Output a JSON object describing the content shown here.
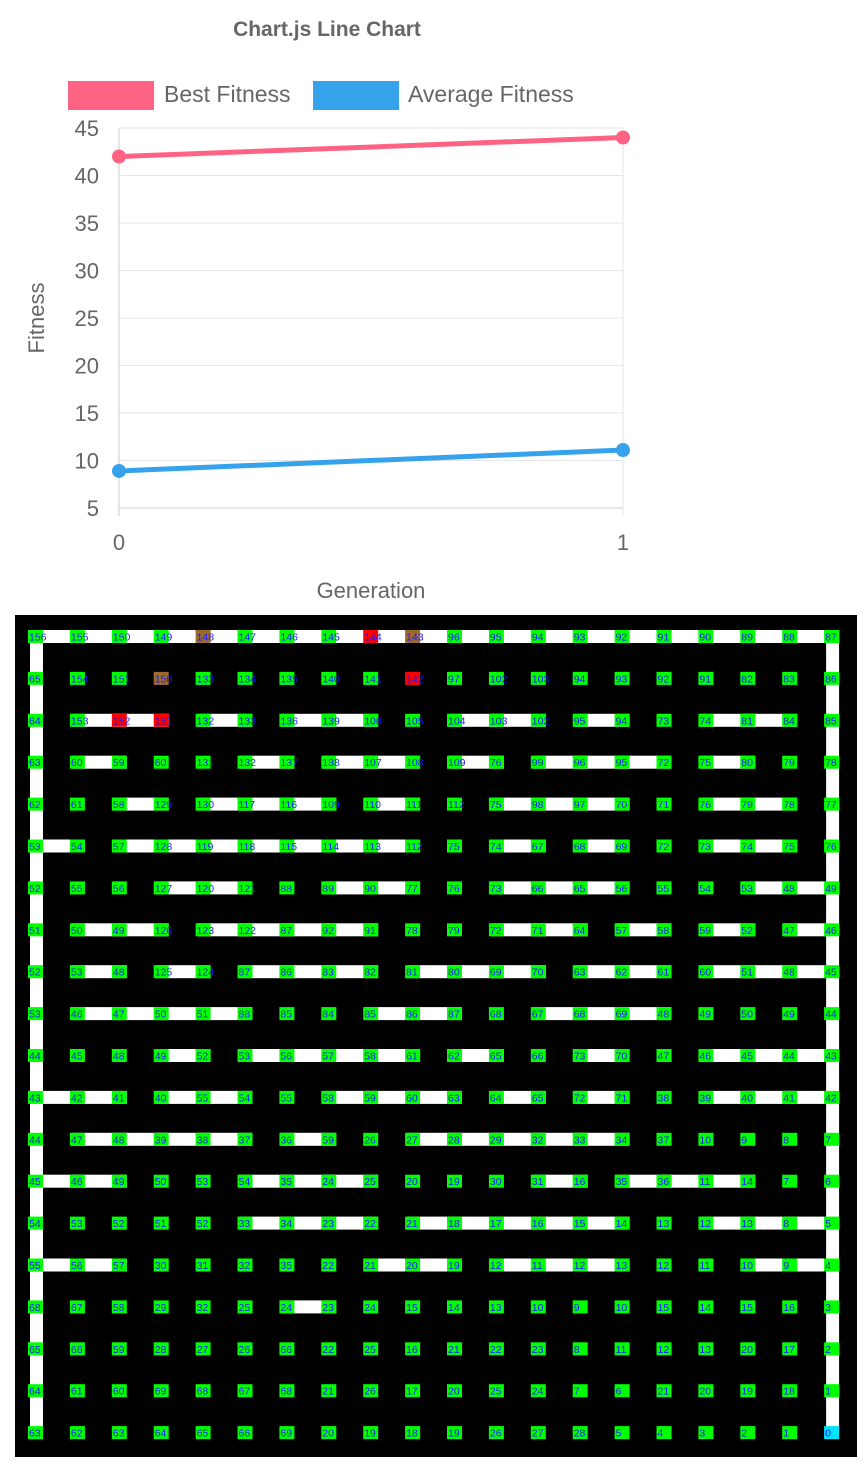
{
  "colors": {
    "best": "#ff6384",
    "average": "#36a2eb",
    "grid": "#e6e6e6",
    "text": "#666666",
    "wall": "#000000",
    "path": "#ffffff",
    "label_green": "#00ff00",
    "label_brown": "#9c6a2a",
    "label_red": "#ff0000",
    "label_cyan": "#00e5ff",
    "label_text": "#1a1aff"
  },
  "chart_data": {
    "type": "line",
    "title": "Chart.js Line Chart",
    "xlabel": "Generation",
    "ylabel": "Fitness",
    "x": [
      0,
      1
    ],
    "ylim": [
      5,
      45
    ],
    "yticks": [
      5,
      10,
      15,
      20,
      25,
      30,
      35,
      40,
      45
    ],
    "grid": true,
    "legend_position": "top",
    "series": [
      {
        "name": "Best Fitness",
        "color": "#ff6384",
        "values": [
          42,
          44
        ]
      },
      {
        "name": "Average Fitness",
        "color": "#36a2eb",
        "values": [
          8.9,
          11.1
        ]
      }
    ]
  },
  "maze": {
    "rows": 20,
    "cols": 20,
    "labels": [
      [
        "156",
        "155",
        "150",
        "149",
        "148",
        "147",
        "146",
        "145",
        "144",
        "143",
        "96",
        "95",
        "94",
        "93",
        "92",
        "91",
        "90",
        "89",
        "88",
        "87"
      ],
      [
        "65",
        "154",
        "151",
        "150",
        "133",
        "134",
        "135",
        "140",
        "141",
        "142",
        "97",
        "102",
        "103",
        "94",
        "93",
        "92",
        "91",
        "82",
        "83",
        "86"
      ],
      [
        "64",
        "153",
        "152",
        "151",
        "132",
        "133",
        "136",
        "139",
        "106",
        "105",
        "104",
        "103",
        "102",
        "95",
        "94",
        "73",
        "74",
        "81",
        "84",
        "85"
      ],
      [
        "63",
        "60",
        "59",
        "60",
        "131",
        "132",
        "137",
        "138",
        "107",
        "108",
        "109",
        "76",
        "99",
        "96",
        "95",
        "72",
        "75",
        "80",
        "79",
        "78"
      ],
      [
        "62",
        "61",
        "58",
        "129",
        "130",
        "117",
        "116",
        "109",
        "110",
        "111",
        "112",
        "75",
        "98",
        "97",
        "70",
        "71",
        "76",
        "79",
        "78",
        "77"
      ],
      [
        "53",
        "54",
        "57",
        "128",
        "119",
        "118",
        "115",
        "114",
        "113",
        "112",
        "75",
        "74",
        "67",
        "68",
        "69",
        "72",
        "73",
        "74",
        "75",
        "76"
      ],
      [
        "52",
        "55",
        "56",
        "127",
        "120",
        "121",
        "88",
        "89",
        "90",
        "77",
        "76",
        "73",
        "66",
        "65",
        "56",
        "55",
        "54",
        "53",
        "48",
        "49"
      ],
      [
        "51",
        "50",
        "49",
        "126",
        "123",
        "122",
        "87",
        "92",
        "91",
        "78",
        "79",
        "72",
        "71",
        "64",
        "57",
        "58",
        "59",
        "52",
        "47",
        "46"
      ],
      [
        "52",
        "53",
        "48",
        "125",
        "124",
        "87",
        "86",
        "83",
        "82",
        "81",
        "80",
        "69",
        "70",
        "63",
        "62",
        "61",
        "60",
        "51",
        "48",
        "45"
      ],
      [
        "53",
        "46",
        "47",
        "50",
        "51",
        "88",
        "85",
        "84",
        "85",
        "86",
        "87",
        "68",
        "67",
        "68",
        "69",
        "48",
        "49",
        "50",
        "49",
        "44"
      ],
      [
        "44",
        "45",
        "48",
        "49",
        "52",
        "53",
        "56",
        "57",
        "58",
        "61",
        "62",
        "65",
        "66",
        "73",
        "70",
        "47",
        "46",
        "45",
        "44",
        "43"
      ],
      [
        "43",
        "42",
        "41",
        "40",
        "55",
        "54",
        "55",
        "58",
        "59",
        "60",
        "63",
        "64",
        "65",
        "72",
        "71",
        "38",
        "39",
        "40",
        "41",
        "42"
      ],
      [
        "44",
        "47",
        "48",
        "39",
        "38",
        "37",
        "36",
        "59",
        "26",
        "27",
        "28",
        "29",
        "32",
        "33",
        "34",
        "37",
        "10",
        "9",
        "8",
        "7"
      ],
      [
        "45",
        "46",
        "49",
        "50",
        "53",
        "54",
        "35",
        "24",
        "25",
        "20",
        "19",
        "30",
        "31",
        "16",
        "35",
        "36",
        "11",
        "14",
        "7",
        "6"
      ],
      [
        "54",
        "53",
        "52",
        "51",
        "52",
        "33",
        "34",
        "23",
        "22",
        "21",
        "18",
        "17",
        "16",
        "15",
        "14",
        "13",
        "12",
        "13",
        "8",
        "5"
      ],
      [
        "55",
        "56",
        "57",
        "30",
        "31",
        "32",
        "35",
        "22",
        "21",
        "20",
        "19",
        "12",
        "11",
        "12",
        "13",
        "12",
        "11",
        "10",
        "9",
        "4"
      ],
      [
        "68",
        "67",
        "58",
        "29",
        "32",
        "25",
        "24",
        "23",
        "24",
        "15",
        "14",
        "13",
        "10",
        "9",
        "10",
        "15",
        "14",
        "15",
        "16",
        "3"
      ],
      [
        "65",
        "66",
        "59",
        "28",
        "27",
        "26",
        "66",
        "22",
        "25",
        "16",
        "21",
        "22",
        "23",
        "8",
        "11",
        "12",
        "13",
        "20",
        "17",
        "2"
      ],
      [
        "64",
        "61",
        "60",
        "69",
        "68",
        "67",
        "68",
        "21",
        "26",
        "17",
        "20",
        "25",
        "24",
        "7",
        "6",
        "21",
        "20",
        "19",
        "18",
        "1"
      ],
      [
        "63",
        "62",
        "63",
        "64",
        "65",
        "66",
        "69",
        "20",
        "19",
        "18",
        "19",
        "26",
        "27",
        "28",
        "5",
        "4",
        "3",
        "2",
        "1",
        "0"
      ]
    ],
    "special_cells": [
      {
        "row": 0,
        "col": 4,
        "style": "brown"
      },
      {
        "row": 0,
        "col": 8,
        "style": "red"
      },
      {
        "row": 0,
        "col": 9,
        "style": "brown"
      },
      {
        "row": 1,
        "col": 3,
        "style": "brown"
      },
      {
        "row": 1,
        "col": 9,
        "style": "red"
      },
      {
        "row": 2,
        "col": 2,
        "style": "red"
      },
      {
        "row": 2,
        "col": 3,
        "style": "red"
      },
      {
        "row": 19,
        "col": 19,
        "style": "cyan"
      }
    ],
    "hpassages": [
      "1111111111111111111111",
      "0000000000000000000000",
      "0110101100110100110100",
      "0100010110101110100100",
      "0010111010011100110110",
      "1011111110010100110100",
      "0001100110011100011000",
      "0110111100011010101000",
      "0101011101110110111100",
      "0111100011001110000100",
      "0001011110100100111110",
      "1101100111010100111100",
      "0111101001111100000000",
      "1100011100001011100000",
      "0000011101111100111110",
      "1100000011011100011000",
      "0000001000000000000000",
      "0000000000000000000000",
      "0000000000000000000000",
      "0000000000000000000000"
    ],
    "vpassages": [
      "1000000000000000000001",
      "1000000000000000000001",
      "1000000000000000000001",
      "1000000000000000000001",
      "1000000000000000000001",
      "1000000000000000000001",
      "1000000000000000000001",
      "1000000000000000000001",
      "1000000000000000000001",
      "1000000000000000000001",
      "1000000000000000000001",
      "1000000000000000000001",
      "1000000000000000000001",
      "1000000000000000000001",
      "1000000000000000000001",
      "1000000000000000000001",
      "1000000000000000000001",
      "1000000000000000000001",
      "1000000000000000000001",
      "1000000000000000000001"
    ]
  }
}
